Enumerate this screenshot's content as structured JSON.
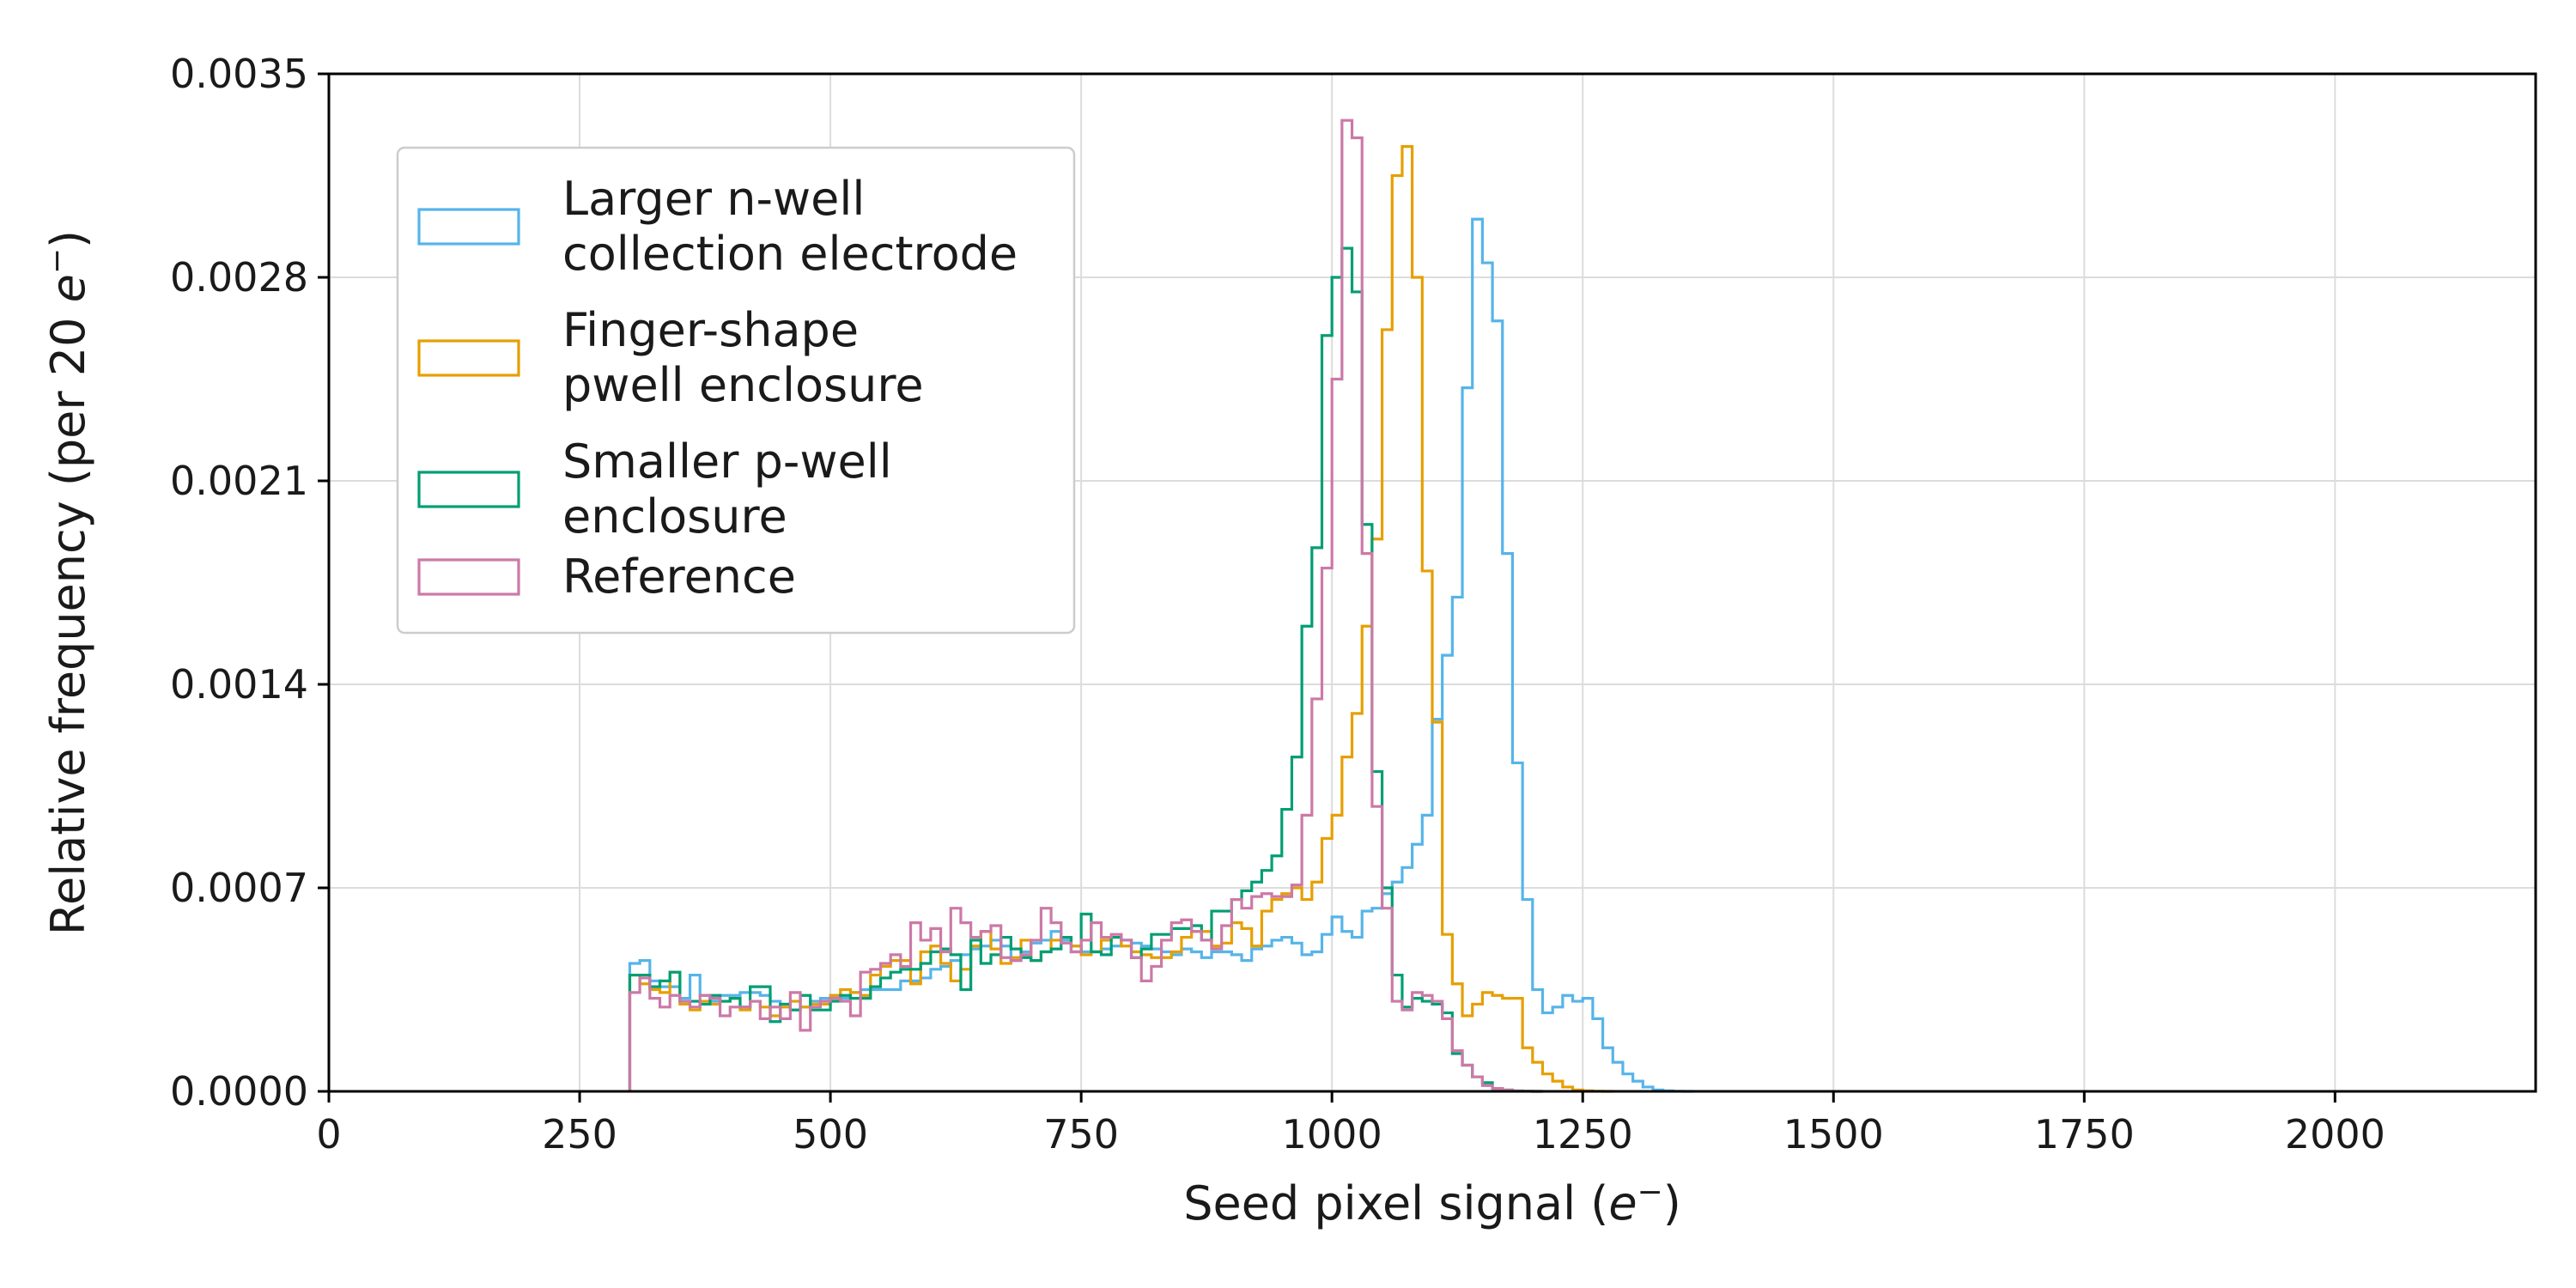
{
  "chart_data": {
    "type": "histogram",
    "title": "",
    "xlabel": "Seed pixel signal",
    "xlabel_unit": "e",
    "xlabel_unit_sup": "−",
    "ylabel": "Relative frequency (per 20",
    "ylabel_unit": "e",
    "ylabel_unit_sup": "−",
    "xlim": [
      0,
      2200
    ],
    "ylim": [
      0,
      0.0035
    ],
    "xticks": [
      0,
      250,
      500,
      750,
      1000,
      1250,
      1500,
      1750,
      2000
    ],
    "yticks": [
      "0.0000",
      "0.0007",
      "0.0014",
      "0.0021",
      "0.0028",
      "0.0035"
    ],
    "grid": true,
    "legend_position": "top-left",
    "bin_start": 300,
    "bin_width": 10,
    "series": [
      {
        "name": "Larger n-well collection electrode",
        "legend_lines": [
          "Larger n-well",
          "collection electrode"
        ],
        "color": "#56B4E9",
        "values": [
          0.00044,
          0.00045,
          0.00038,
          0.00036,
          0.00036,
          0.00032,
          0.0004,
          0.00033,
          0.00031,
          0.00033,
          0.00033,
          0.00034,
          0.00034,
          0.00033,
          0.00031,
          0.0003,
          0.00028,
          0.00029,
          0.00031,
          0.00032,
          0.00033,
          0.00032,
          0.00034,
          0.00035,
          0.00035,
          0.00035,
          0.00035,
          0.00038,
          0.00038,
          0.00039,
          0.00042,
          0.00043,
          0.00045,
          0.00047,
          0.00049,
          0.0005,
          0.00052,
          0.0005,
          0.00045,
          0.00048,
          0.00051,
          0.00052,
          0.00055,
          0.00052,
          0.0005,
          0.00048,
          0.00048,
          0.00049,
          0.0005,
          0.00052,
          0.00051,
          0.0005,
          0.00049,
          0.00048,
          0.00047,
          0.00049,
          0.00048,
          0.00046,
          0.00048,
          0.00048,
          0.00047,
          0.00045,
          0.00049,
          0.0005,
          0.00052,
          0.00053,
          0.00051,
          0.00047,
          0.00048,
          0.00054,
          0.0006,
          0.00055,
          0.00053,
          0.00062,
          0.00063,
          0.00068,
          0.00072,
          0.00077,
          0.00085,
          0.00095,
          0.00128,
          0.0015,
          0.0017,
          0.00242,
          0.003,
          0.00285,
          0.00265,
          0.00185,
          0.00113,
          0.00066,
          0.00035,
          0.00027,
          0.00029,
          0.00033,
          0.00031,
          0.00032,
          0.00025,
          0.00015,
          0.0001,
          6e-05,
          3.5e-05,
          1.5e-05,
          5e-06,
          2e-06,
          5e-07,
          0.0
        ]
      },
      {
        "name": "Finger-shape pwell enclosure",
        "legend_lines": [
          "Finger-shape",
          "pwell enclosure"
        ],
        "color": "#E69F00",
        "values": [
          0.0004,
          0.00037,
          0.00035,
          0.00034,
          0.00041,
          0.0003,
          0.00028,
          0.00031,
          0.0003,
          0.00031,
          0.00032,
          0.00028,
          0.00031,
          0.00029,
          0.00026,
          0.00029,
          0.00031,
          0.00029,
          0.0003,
          0.0003,
          0.00033,
          0.00035,
          0.00034,
          0.00033,
          0.0004,
          0.00043,
          0.00045,
          0.00045,
          0.00037,
          0.00048,
          0.0005,
          0.00044,
          0.00038,
          0.00042,
          0.0005,
          0.00055,
          0.00049,
          0.00044,
          0.00046,
          0.00052,
          0.00045,
          0.00048,
          0.00052,
          0.00053,
          0.0005,
          0.00047,
          0.00048,
          0.00052,
          0.00053,
          0.0005,
          0.00048,
          0.00047,
          0.00046,
          0.00046,
          0.00048,
          0.00053,
          0.00055,
          0.00055,
          0.0005,
          0.00051,
          0.00058,
          0.00056,
          0.0005,
          0.00062,
          0.00066,
          0.00068,
          0.0007,
          0.00066,
          0.00072,
          0.00087,
          0.00095,
          0.00115,
          0.0013,
          0.0016,
          0.0019,
          0.00262,
          0.00315,
          0.00325,
          0.0028,
          0.00179,
          0.00127,
          0.00054,
          0.00037,
          0.00026,
          0.0003,
          0.00034,
          0.00033,
          0.00032,
          0.00032,
          0.00015,
          0.0001,
          6e-05,
          3.5e-05,
          1.5e-05,
          5e-06,
          2e-06,
          5e-07,
          0.0
        ]
      },
      {
        "name": "Smaller p-well enclosure",
        "legend_lines": [
          "Smaller p-well",
          "enclosure"
        ],
        "color": "#009E73",
        "values": [
          0.0004,
          0.0004,
          0.00036,
          0.00038,
          0.00041,
          0.00031,
          0.00031,
          0.0003,
          0.00033,
          0.00031,
          0.00032,
          0.00029,
          0.00036,
          0.00036,
          0.00024,
          0.0003,
          0.00028,
          0.00033,
          0.00028,
          0.00028,
          0.00031,
          0.00033,
          0.00032,
          0.00032,
          0.00036,
          0.00039,
          0.00041,
          0.00042,
          0.00042,
          0.00044,
          0.00048,
          0.00049,
          0.00047,
          0.00035,
          0.00052,
          0.00044,
          0.00047,
          0.00053,
          0.00049,
          0.00046,
          0.00045,
          0.00048,
          0.00049,
          0.00053,
          0.00048,
          0.00061,
          0.00048,
          0.00047,
          0.00053,
          0.00052,
          0.00046,
          0.00049,
          0.00054,
          0.00054,
          0.00056,
          0.00056,
          0.00057,
          0.00052,
          0.00062,
          0.00062,
          0.00066,
          0.00069,
          0.00072,
          0.00076,
          0.00081,
          0.00097,
          0.00115,
          0.0016,
          0.00187,
          0.0026,
          0.0028,
          0.0029,
          0.00275,
          0.00195,
          0.0011,
          0.0007,
          0.0004,
          0.00029,
          0.00032,
          0.00031,
          0.0003,
          0.00027,
          0.00013,
          9e-05,
          5e-05,
          3e-05,
          1e-05,
          5e-06,
          1.5e-06,
          5e-07,
          0.0
        ]
      },
      {
        "name": "Reference",
        "legend_lines": [
          "Reference"
        ],
        "color": "#CC79A7",
        "values": [
          0.00034,
          0.00039,
          0.00032,
          0.00029,
          0.00033,
          0.00031,
          0.00029,
          0.00033,
          0.00032,
          0.00026,
          0.00029,
          0.00029,
          0.00031,
          0.00025,
          0.00029,
          0.00025,
          0.00034,
          0.00021,
          0.00029,
          0.00031,
          0.00032,
          0.00031,
          0.00026,
          0.00041,
          0.00042,
          0.00044,
          0.00047,
          0.00043,
          0.00058,
          0.00052,
          0.00056,
          0.00048,
          0.00063,
          0.00058,
          0.00053,
          0.00055,
          0.00057,
          0.00046,
          0.00045,
          0.00047,
          0.00052,
          0.00063,
          0.00058,
          0.00051,
          0.00048,
          0.00052,
          0.00058,
          0.00053,
          0.00054,
          0.00052,
          0.00046,
          0.00038,
          0.00043,
          0.00052,
          0.00058,
          0.00059,
          0.00055,
          0.00052,
          0.00049,
          0.00057,
          0.00066,
          0.00063,
          0.00067,
          0.00068,
          0.00067,
          0.00067,
          0.00071,
          0.00095,
          0.00135,
          0.0018,
          0.00245,
          0.00334,
          0.00328,
          0.00185,
          0.00098,
          0.00063,
          0.00031,
          0.00028,
          0.00034,
          0.00033,
          0.00031,
          0.00025,
          0.00014,
          9e-05,
          5e-05,
          2e-05,
          1e-05,
          4e-06,
          1.5e-06,
          5e-07,
          0.0
        ]
      }
    ]
  }
}
